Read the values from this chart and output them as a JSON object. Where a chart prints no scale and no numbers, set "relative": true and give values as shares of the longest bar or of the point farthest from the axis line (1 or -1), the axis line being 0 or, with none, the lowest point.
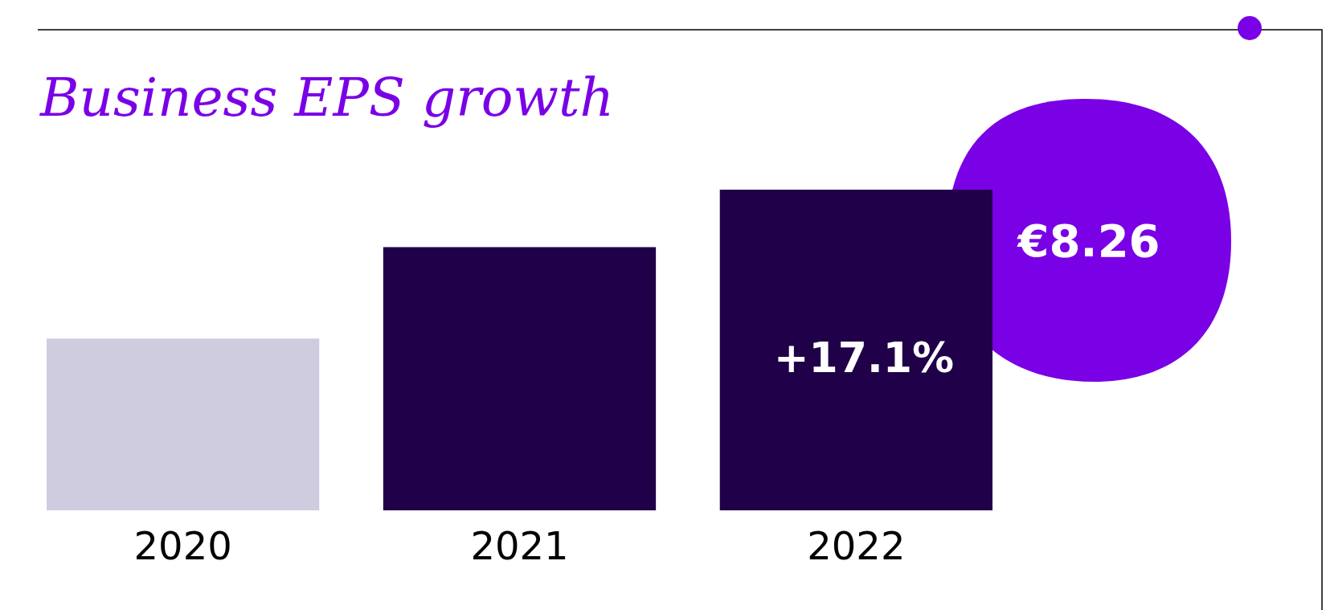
{
  "chart_data": {
    "type": "bar",
    "title": "Business EPS growth",
    "relative": true,
    "categories": [
      "2020",
      "2021",
      "2022"
    ],
    "values": [
      0.536,
      0.821,
      1
    ],
    "colors": [
      "#d0cce0",
      "#200048",
      "#200048"
    ],
    "annotations": [
      "+17.1%",
      "€8.26"
    ],
    "grid": false,
    "legend": false
  }
}
